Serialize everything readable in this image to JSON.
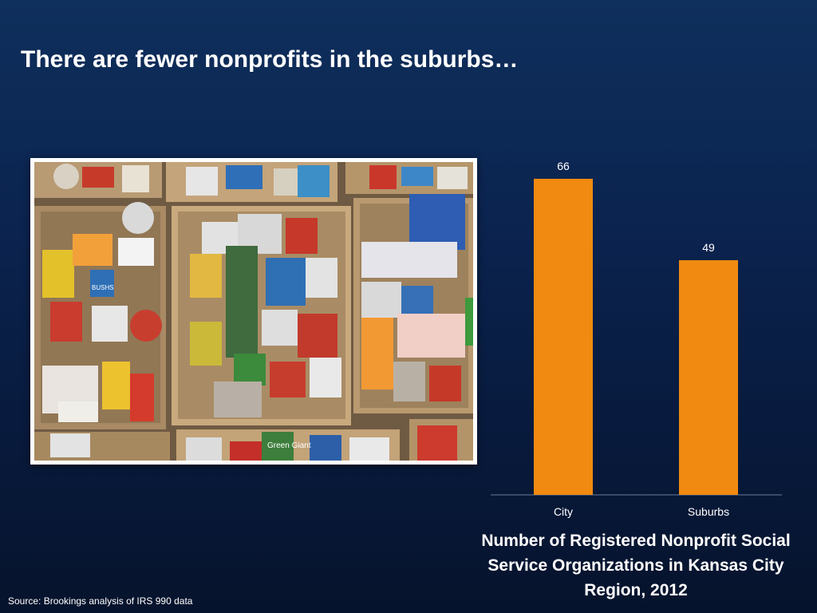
{
  "slide": {
    "title": "There are fewer nonprofits in the suburbs…",
    "source": "Source:  Brookings analysis of IRS 990 data"
  },
  "photo": {
    "description_icon": "canned-food-boxes-photo",
    "label_green_giant": "Green Giant",
    "label_bushs": "BUSHS"
  },
  "chart_data": {
    "type": "bar",
    "categories": [
      "City",
      "Suburbs"
    ],
    "values": [
      66,
      49
    ],
    "data_labels": [
      "66",
      "49"
    ],
    "title": "Number of Registered Nonprofit Social Service Organizations in Kansas City Region, 2012",
    "xlabel": "",
    "ylabel": "",
    "ylim": [
      0,
      70
    ],
    "grid": false,
    "legend": "none",
    "bar_color": "#f08a10",
    "axis_color": "#6b7a99"
  }
}
